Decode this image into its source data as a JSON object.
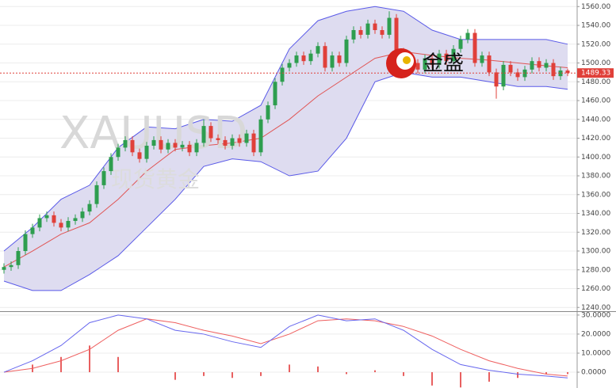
{
  "watermark": {
    "symbol": "XAUUSD",
    "name": "现货黄金"
  },
  "logo": "金盛",
  "chart_data": [
    {
      "type": "candlestick",
      "up_color": "#2e9e4f",
      "down_color": "#e0403a",
      "ylim": [
        1236,
        1567
      ],
      "yticks": [
        {
          "value": 1240,
          "label": "1240.00"
        },
        {
          "value": 1260,
          "label": "1260.00"
        },
        {
          "value": 1280,
          "label": "1280.00"
        },
        {
          "value": 1300,
          "label": "1300.00"
        },
        {
          "value": 1320,
          "label": "1320.00"
        },
        {
          "value": 1340,
          "label": "1340.00"
        },
        {
          "value": 1360,
          "label": "1360.00"
        },
        {
          "value": 1380,
          "label": "1380.00"
        },
        {
          "value": 1400,
          "label": "1400.00"
        },
        {
          "value": 1420,
          "label": "1420.00"
        },
        {
          "value": 1440,
          "label": "1440.00"
        },
        {
          "value": 1460,
          "label": "1460.00"
        },
        {
          "value": 1480,
          "label": "1480.00"
        },
        {
          "value": 1500,
          "label": "1500.00"
        },
        {
          "value": 1520,
          "label": "1520.00"
        },
        {
          "value": 1540,
          "label": "1540.00"
        },
        {
          "value": 1560,
          "label": "1560.00"
        }
      ],
      "grid": true,
      "open": [
        1280,
        1283,
        1285,
        1300,
        1318,
        1325,
        1335,
        1338,
        1330,
        1325,
        1332,
        1335,
        1342,
        1350,
        1370,
        1385,
        1400,
        1410,
        1418,
        1405,
        1398,
        1412,
        1418,
        1408,
        1415,
        1410,
        1413,
        1405,
        1415,
        1433,
        1420,
        1418,
        1412,
        1420,
        1415,
        1425,
        1405,
        1440,
        1455,
        1480,
        1495,
        1500,
        1508,
        1502,
        1510,
        1518,
        1495,
        1508,
        1500,
        1525,
        1535,
        1530,
        1542,
        1535,
        1530,
        1548,
        1512,
        1495,
        1500,
        1493,
        1505,
        1498,
        1510,
        1502,
        1515,
        1525,
        1532,
        1500,
        1508,
        1490,
        1475,
        1498,
        1490,
        1485,
        1493,
        1502,
        1495,
        1500,
        1486,
        1492
      ],
      "high": [
        1287,
        1289,
        1304,
        1322,
        1329,
        1339,
        1342,
        1342,
        1334,
        1336,
        1339,
        1346,
        1354,
        1374,
        1389,
        1404,
        1414,
        1422,
        1422,
        1409,
        1416,
        1422,
        1422,
        1419,
        1419,
        1417,
        1417,
        1419,
        1440,
        1437,
        1424,
        1422,
        1424,
        1424,
        1429,
        1429,
        1444,
        1459,
        1484,
        1499,
        1504,
        1512,
        1512,
        1514,
        1522,
        1522,
        1512,
        1512,
        1529,
        1539,
        1539,
        1546,
        1546,
        1539,
        1555,
        1552,
        1516,
        1504,
        1504,
        1509,
        1509,
        1514,
        1514,
        1519,
        1529,
        1536,
        1536,
        1512,
        1512,
        1494,
        1502,
        1502,
        1494,
        1497,
        1506,
        1506,
        1504,
        1504,
        1496,
        1494
      ],
      "low": [
        1276,
        1279,
        1281,
        1296,
        1314,
        1321,
        1331,
        1326,
        1321,
        1321,
        1328,
        1331,
        1338,
        1346,
        1366,
        1381,
        1396,
        1406,
        1401,
        1394,
        1394,
        1408,
        1404,
        1404,
        1406,
        1406,
        1401,
        1401,
        1411,
        1416,
        1414,
        1408,
        1408,
        1411,
        1411,
        1401,
        1401,
        1436,
        1451,
        1476,
        1491,
        1496,
        1498,
        1498,
        1506,
        1491,
        1491,
        1496,
        1496,
        1521,
        1526,
        1526,
        1531,
        1526,
        1526,
        1508,
        1491,
        1491,
        1489,
        1489,
        1494,
        1494,
        1498,
        1498,
        1511,
        1521,
        1496,
        1496,
        1486,
        1462,
        1471,
        1486,
        1481,
        1481,
        1489,
        1491,
        1491,
        1482,
        1482,
        1486
      ],
      "close": [
        1283,
        1285,
        1300,
        1318,
        1325,
        1335,
        1338,
        1330,
        1325,
        1332,
        1335,
        1342,
        1350,
        1370,
        1385,
        1400,
        1410,
        1418,
        1405,
        1398,
        1412,
        1418,
        1408,
        1415,
        1410,
        1413,
        1405,
        1415,
        1433,
        1420,
        1418,
        1412,
        1420,
        1415,
        1425,
        1405,
        1440,
        1455,
        1480,
        1495,
        1500,
        1508,
        1502,
        1510,
        1518,
        1495,
        1508,
        1500,
        1525,
        1535,
        1530,
        1542,
        1535,
        1530,
        1548,
        1512,
        1495,
        1500,
        1493,
        1505,
        1498,
        1510,
        1502,
        1515,
        1525,
        1532,
        1500,
        1508,
        1490,
        1475,
        1498,
        1490,
        1485,
        1493,
        1502,
        1495,
        1500,
        1486,
        1492,
        1489.33
      ],
      "bands": {
        "x": [
          0,
          4,
          8,
          12,
          16,
          20,
          24,
          28,
          32,
          36,
          40,
          44,
          48,
          52,
          56,
          60,
          64,
          68,
          72,
          76,
          79
        ],
        "upper": [
          1300,
          1325,
          1355,
          1370,
          1410,
          1432,
          1430,
          1440,
          1438,
          1455,
          1515,
          1545,
          1555,
          1560,
          1555,
          1535,
          1525,
          1525,
          1525,
          1525,
          1520
        ],
        "middle": [
          1283,
          1300,
          1318,
          1330,
          1355,
          1385,
          1408,
          1412,
          1415,
          1420,
          1440,
          1465,
          1485,
          1505,
          1512,
          1508,
          1505,
          1503,
          1500,
          1497,
          1495
        ],
        "lower": [
          1268,
          1258,
          1258,
          1275,
          1295,
          1325,
          1355,
          1390,
          1398,
          1395,
          1380,
          1385,
          1420,
          1480,
          1490,
          1485,
          1485,
          1480,
          1475,
          1475,
          1472
        ],
        "line_color": "#5a5ae8",
        "middle_color": "#e05555",
        "fill": "#dedcf0"
      }
    },
    {
      "type": "macd",
      "ylim": [
        -8.3,
        31.2
      ],
      "yticks": [
        {
          "value": 0,
          "label": "0.0000"
        },
        {
          "value": 10,
          "label": "10.0000"
        },
        {
          "value": 20,
          "label": "20.0000"
        },
        {
          "value": 30,
          "label": "30.0000"
        }
      ],
      "x": [
        0,
        4,
        8,
        12,
        16,
        20,
        24,
        28,
        32,
        36,
        40,
        44,
        48,
        52,
        56,
        60,
        64,
        68,
        72,
        76,
        79
      ],
      "dif": [
        0,
        6,
        14,
        26,
        30,
        28,
        22,
        20,
        16,
        13,
        24,
        30,
        27,
        28,
        22,
        12,
        4,
        1,
        -1,
        -2,
        -3
      ],
      "dea": [
        0,
        2,
        6,
        12,
        22,
        28,
        26,
        22,
        19,
        15,
        20,
        27,
        28,
        27,
        24,
        19,
        12,
        6,
        2,
        -1,
        -2
      ],
      "hist": [
        0,
        4,
        8,
        14,
        8,
        0,
        -4,
        -2,
        -3,
        -2,
        4,
        3,
        -1,
        1,
        -2,
        -7,
        -8,
        -5,
        -3,
        -1,
        -1
      ],
      "dif_color": "#6666ee",
      "dea_color": "#ee5f5f",
      "hist_color": "#e86060"
    }
  ]
}
